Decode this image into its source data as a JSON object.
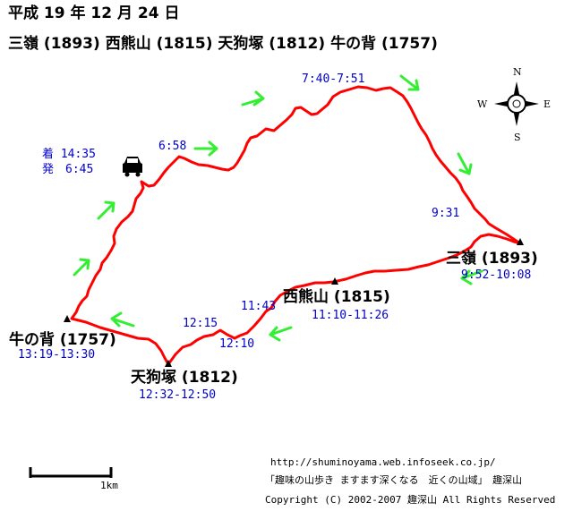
{
  "header": {
    "date": "平成 19 年 12 月 24 日",
    "route": "三嶺 (1893) 西熊山 (1815) 天狗塚 (1812) 牛の背 (1757)"
  },
  "peaks": {
    "sanrei": "三嶺 (1893)",
    "nishikuma": "西熊山 (1815)",
    "tengu": "天狗塚 (1812)",
    "ushinose": "牛の背 (1757)"
  },
  "times": {
    "arrive": "着 14:35",
    "depart": "発　6:45",
    "t658": "6:58",
    "t740": "7:40-7:51",
    "t931": "9:31",
    "sanrei": "9:52-10:08",
    "nishikuma": "11:10-11:26",
    "t1143": "11:43",
    "t1215": "12:15",
    "t1210": "12:10",
    "tengu": "12:32-12:50",
    "ushinose": "13:19-13:30"
  },
  "compass": {
    "n": "N",
    "s": "S",
    "e": "E",
    "w": "W"
  },
  "scale": {
    "label": "1km"
  },
  "footer": {
    "url": "http://shuminoyama.web.infoseek.co.jp/",
    "site": "「趣味の山歩き ますます深くなる　近くの山域」　趣深山",
    "copyright": "Copyright (C) 2002-2007 趣深山 All Rights Reserved"
  },
  "colors": {
    "route": "#ff0000",
    "arrow": "#33ee33",
    "time": "#0000cc"
  },
  "icons": [
    "car-icon",
    "compass-icon",
    "summit-marker-icon",
    "direction-arrow-icon"
  ]
}
